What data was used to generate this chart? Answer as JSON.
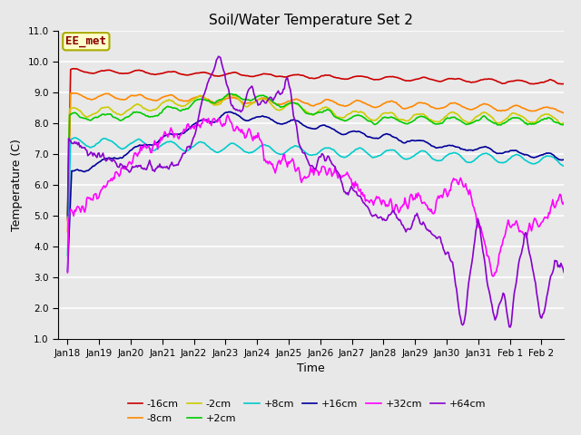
{
  "title": "Soil/Water Temperature Set 2",
  "xlabel": "Time",
  "ylabel": "Temperature (C)",
  "ylim": [
    1.0,
    11.0
  ],
  "yticks": [
    1.0,
    2.0,
    3.0,
    4.0,
    5.0,
    6.0,
    7.0,
    8.0,
    9.0,
    10.0,
    11.0
  ],
  "xtick_labels": [
    "Jan 18",
    "Jan 19",
    "Jan 20",
    "Jan 21",
    "Jan 22",
    "Jan 23",
    "Jan 24",
    "Jan 25",
    "Jan 26",
    "Jan 27",
    "Jan 28",
    "Jan 29",
    "Jan 30",
    "Jan 31",
    "Feb 1",
    "Feb 2"
  ],
  "annotation_text": "EE_met",
  "annotation_box_color": "#ffffcc",
  "annotation_border_color": "#aaaa00",
  "annotation_text_color": "#880000",
  "background_color": "#e8e8e8",
  "plot_bg_color": "#e8e8e8",
  "series": [
    {
      "label": "-16cm",
      "color": "#cc0000",
      "lw": 1.2
    },
    {
      "label": "-8cm",
      "color": "#ff8800",
      "lw": 1.2
    },
    {
      "label": "-2cm",
      "color": "#cccc00",
      "lw": 1.2
    },
    {
      "label": "+2cm",
      "color": "#00cc00",
      "lw": 1.2
    },
    {
      "label": "+8cm",
      "color": "#00cccc",
      "lw": 1.2
    },
    {
      "label": "+16cm",
      "color": "#000099",
      "lw": 1.2
    },
    {
      "label": "+32cm",
      "color": "#ff00ff",
      "lw": 1.2
    },
    {
      "label": "+64cm",
      "color": "#8800cc",
      "lw": 1.2
    }
  ]
}
